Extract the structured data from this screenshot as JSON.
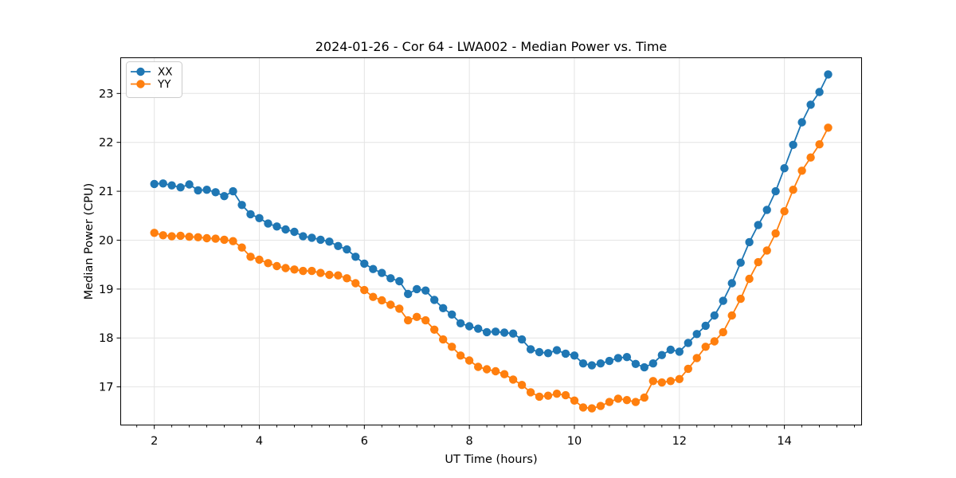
{
  "chart_data": {
    "type": "line",
    "title": "2024-01-26 - Cor 64 - LWA002 - Median Power vs. Time",
    "xlabel": "UT Time (hours)",
    "ylabel": "Median Power (CPU)",
    "xlim": [
      1.36,
      15.47
    ],
    "ylim": [
      16.22,
      23.73
    ],
    "x_ticks": [
      2,
      4,
      6,
      8,
      10,
      12,
      14
    ],
    "y_ticks": [
      17,
      18,
      19,
      20,
      21,
      22,
      23
    ],
    "x_minor_tick_step": 0.33333,
    "grid": "major-both",
    "grid_color": "#e4e4e4",
    "background_color": "#ffffff",
    "spine_color": "#000000",
    "legend_position": "upper-left",
    "marker": "o",
    "x": [
      2,
      2.167,
      2.333,
      2.5,
      2.667,
      2.833,
      3,
      3.167,
      3.333,
      3.5,
      3.667,
      3.833,
      4,
      4.167,
      4.333,
      4.5,
      4.667,
      4.833,
      5,
      5.167,
      5.333,
      5.5,
      5.667,
      5.833,
      6,
      6.167,
      6.333,
      6.5,
      6.667,
      6.833,
      7,
      7.167,
      7.333,
      7.5,
      7.667,
      7.833,
      8,
      8.167,
      8.333,
      8.5,
      8.667,
      8.833,
      9,
      9.167,
      9.333,
      9.5,
      9.667,
      9.833,
      10,
      10.167,
      10.333,
      10.5,
      10.667,
      10.833,
      11,
      11.167,
      11.333,
      11.5,
      11.667,
      11.833,
      12,
      12.167,
      12.333,
      12.5,
      12.667,
      12.833,
      13,
      13.167,
      13.333,
      13.5,
      13.667,
      13.833,
      14,
      14.167,
      14.333,
      14.5,
      14.667,
      14.833
    ],
    "series": [
      {
        "name": "XX",
        "color": "#1f77b4",
        "values": [
          21.15,
          21.16,
          21.12,
          21.08,
          21.14,
          21.02,
          21.03,
          20.98,
          20.9,
          21.0,
          20.72,
          20.53,
          20.45,
          20.34,
          20.28,
          20.22,
          20.17,
          20.08,
          20.05,
          20.01,
          19.97,
          19.88,
          19.81,
          19.66,
          19.52,
          19.41,
          19.33,
          19.22,
          19.16,
          18.9,
          19.0,
          18.97,
          18.78,
          18.61,
          18.48,
          18.3,
          18.24,
          18.19,
          18.12,
          18.13,
          18.11,
          18.09,
          17.97,
          17.77,
          17.71,
          17.69,
          17.75,
          17.68,
          17.64,
          17.48,
          17.44,
          17.48,
          17.53,
          17.59,
          17.61,
          17.47,
          17.4,
          17.48,
          17.65,
          17.76,
          17.72,
          17.9,
          18.08,
          18.25,
          18.46,
          18.76,
          19.12,
          19.54,
          19.96,
          20.31,
          20.62,
          21.0,
          21.47,
          21.95,
          22.41,
          22.77,
          23.03,
          23.39
        ]
      },
      {
        "name": "YY",
        "color": "#ff7f0e",
        "values": [
          20.15,
          20.1,
          20.08,
          20.09,
          20.07,
          20.06,
          20.04,
          20.03,
          20.01,
          19.98,
          19.85,
          19.66,
          19.6,
          19.53,
          19.47,
          19.43,
          19.4,
          19.37,
          19.37,
          19.33,
          19.29,
          19.28,
          19.22,
          19.12,
          18.98,
          18.84,
          18.77,
          18.68,
          18.6,
          18.36,
          18.43,
          18.36,
          18.17,
          17.97,
          17.82,
          17.64,
          17.54,
          17.41,
          17.36,
          17.32,
          17.26,
          17.15,
          17.04,
          16.89,
          16.8,
          16.82,
          16.86,
          16.83,
          16.72,
          16.58,
          16.56,
          16.61,
          16.69,
          16.76,
          16.73,
          16.69,
          16.78,
          17.12,
          17.09,
          17.12,
          17.16,
          17.37,
          17.59,
          17.82,
          17.93,
          18.12,
          18.46,
          18.8,
          19.21,
          19.55,
          19.79,
          20.14,
          20.59,
          21.03,
          21.42,
          21.69,
          21.96,
          22.3
        ]
      }
    ]
  }
}
